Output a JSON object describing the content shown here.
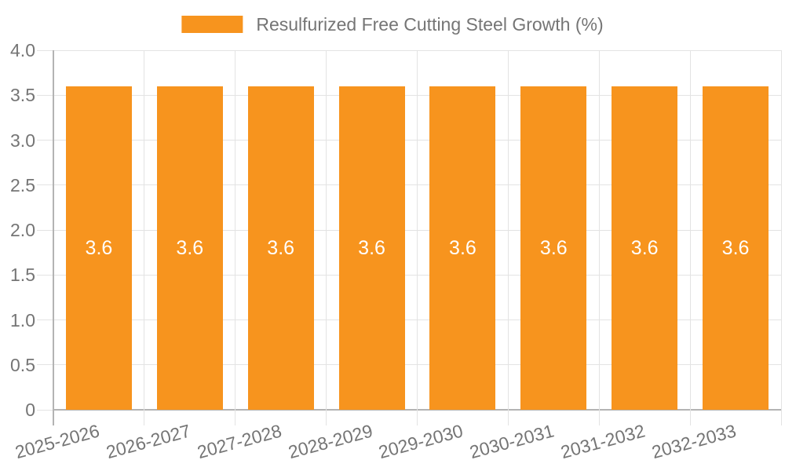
{
  "chart_data": {
    "type": "bar",
    "title": "",
    "legend": "Resulfurized Free Cutting Steel Growth (%)",
    "legend_position": "top-center",
    "categories": [
      "2025-2026",
      "2026-2027",
      "2027-2028",
      "2028-2029",
      "2029-2030",
      "2030-2031",
      "2031-2032",
      "2032-2033"
    ],
    "values": [
      3.6,
      3.6,
      3.6,
      3.6,
      3.6,
      3.6,
      3.6,
      3.6
    ],
    "value_labels": [
      "3.6",
      "3.6",
      "3.6",
      "3.6",
      "3.6",
      "3.6",
      "3.6",
      "3.6"
    ],
    "xlabel": "",
    "ylabel": "",
    "ylim": [
      0,
      4
    ],
    "yticks": [
      "0",
      "0.5",
      "1.0",
      "1.5",
      "2.0",
      "2.5",
      "3.0",
      "3.5",
      "4.0"
    ],
    "grid": true,
    "x_label_rotation_deg": -15,
    "colors": {
      "bar": "#f7941e",
      "gridline": "#e3e3e3",
      "axis": "#b3b3b3",
      "tick_text": "#757575",
      "legend_text": "#757575",
      "value_label_text": "#ffffff",
      "background": "#ffffff"
    }
  }
}
